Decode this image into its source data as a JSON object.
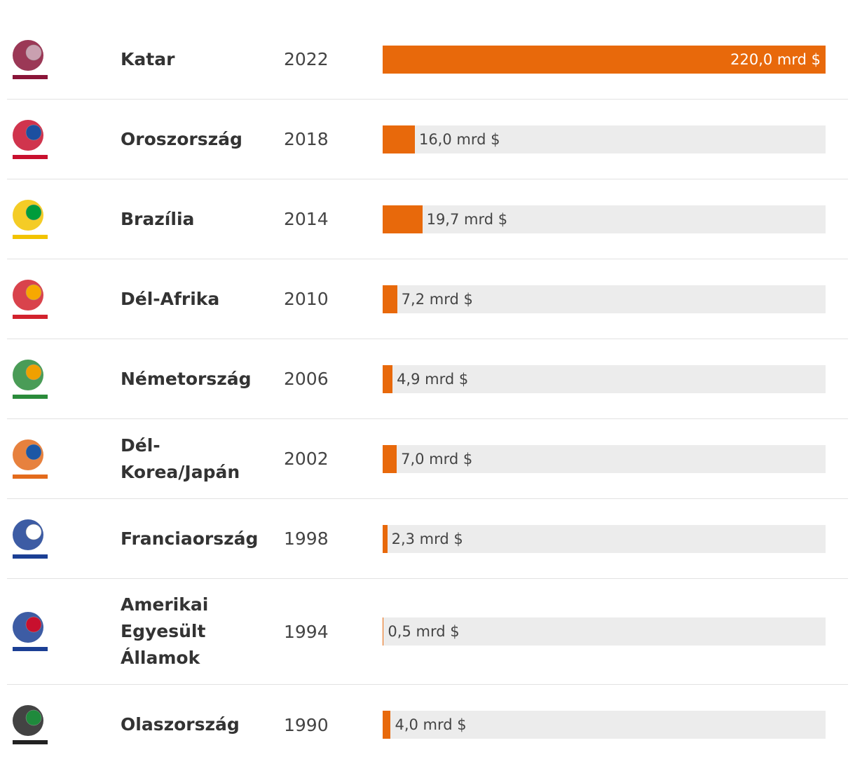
{
  "chart_data": {
    "type": "bar",
    "color": "#e8690b",
    "categories": [
      "Katar",
      "Oroszország",
      "Brazília",
      "Dél-Korea/Japán",
      "Németország",
      "Dél-Afrika",
      "Franciaország",
      "Amerikai Egyesült Államok",
      "Olaszország"
    ],
    "years": [
      "2022",
      "2018",
      "2014",
      "2002",
      "2006",
      "2010",
      "1998",
      "1994",
      "1990"
    ],
    "values": [
      220.0,
      16.0,
      19.7,
      7.0,
      4.9,
      7.2,
      2.3,
      0.5,
      4.0
    ],
    "value_labels": [
      "220,0 mrd $",
      "16,0 mrd $",
      "19,7 mrd $",
      "7,0 mrd $",
      "4,9 mrd $",
      "7,2 mrd $",
      "2,3 mrd $",
      "0,5 mrd $",
      "4,0 mrd $"
    ]
  }
}
